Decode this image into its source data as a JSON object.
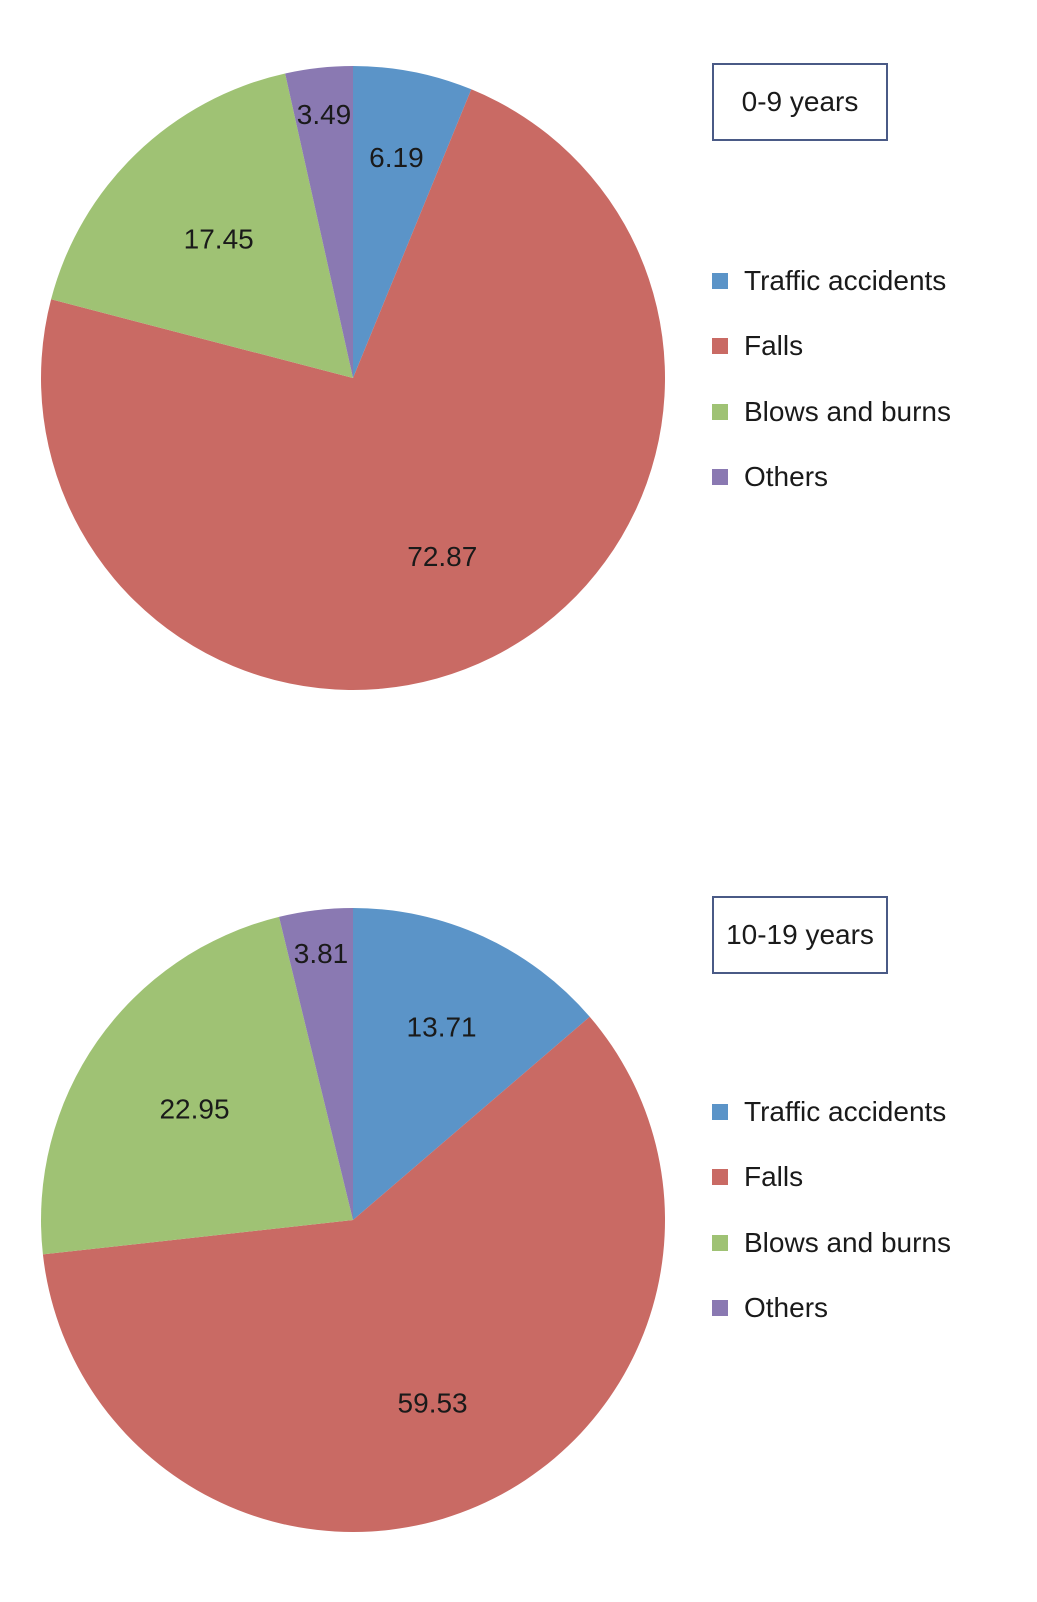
{
  "chart_data": [
    {
      "type": "pie",
      "title": "0-9 years",
      "categories": [
        "Traffic accidents",
        "Falls",
        "Blows and burns",
        "Others"
      ],
      "values": [
        6.19,
        72.87,
        17.45,
        3.49
      ],
      "data_labels": [
        "6.19",
        "72.87",
        "17.45",
        "3.49"
      ],
      "colors": [
        "#5b94c8",
        "#c96a64",
        "#9fc274",
        "#8a79b2"
      ],
      "legend_position": "right"
    },
    {
      "type": "pie",
      "title": "10-19 years",
      "categories": [
        "Traffic accidents",
        "Falls",
        "Blows and burns",
        "Others"
      ],
      "values": [
        13.71,
        59.53,
        22.95,
        3.81
      ],
      "data_labels": [
        "13.71",
        "59.53",
        "22.95",
        "3.81"
      ],
      "colors": [
        "#5b94c8",
        "#c96a64",
        "#9fc274",
        "#8a79b2"
      ],
      "legend_position": "right"
    }
  ]
}
